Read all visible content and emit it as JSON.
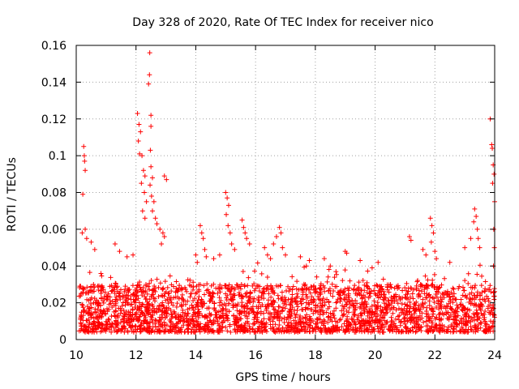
{
  "chart_data": {
    "type": "scatter",
    "title": "Day 328 of 2020, Rate Of TEC Index for receiver nico",
    "xlabel": "GPS time / hours",
    "ylabel": "ROTI / TECUs",
    "xlim": [
      10,
      24
    ],
    "ylim": [
      0,
      0.16
    ],
    "xticks": [
      "10",
      "12",
      "14",
      "16",
      "18",
      "20",
      "22",
      "24"
    ],
    "yticks": [
      "0",
      "0.02",
      "0.04",
      "0.06",
      "0.08",
      "0.1",
      "0.12",
      "0.14",
      "0.16"
    ],
    "grid": true,
    "marker": "+",
    "color": "#ff0000",
    "series": [
      {
        "name": "ROTI",
        "points": [
          [
            10.25,
            0.105
          ],
          [
            10.28,
            0.097
          ],
          [
            10.3,
            0.092
          ],
          [
            10.27,
            0.1
          ],
          [
            10.22,
            0.079
          ],
          [
            10.3,
            0.06
          ],
          [
            10.2,
            0.058
          ],
          [
            10.35,
            0.055
          ],
          [
            10.5,
            0.053
          ],
          [
            10.62,
            0.049
          ],
          [
            11.3,
            0.052
          ],
          [
            11.45,
            0.048
          ],
          [
            11.7,
            0.045
          ],
          [
            11.9,
            0.046
          ],
          [
            12.05,
            0.123
          ],
          [
            12.1,
            0.117
          ],
          [
            12.15,
            0.113
          ],
          [
            12.08,
            0.108
          ],
          [
            12.12,
            0.101
          ],
          [
            12.2,
            0.1
          ],
          [
            12.25,
            0.092
          ],
          [
            12.3,
            0.089
          ],
          [
            12.18,
            0.085
          ],
          [
            12.28,
            0.08
          ],
          [
            12.35,
            0.075
          ],
          [
            12.22,
            0.07
          ],
          [
            12.3,
            0.066
          ],
          [
            12.46,
            0.156
          ],
          [
            12.45,
            0.144
          ],
          [
            12.42,
            0.139
          ],
          [
            12.5,
            0.122
          ],
          [
            12.5,
            0.116
          ],
          [
            12.48,
            0.103
          ],
          [
            12.5,
            0.094
          ],
          [
            12.55,
            0.088
          ],
          [
            12.47,
            0.084
          ],
          [
            12.52,
            0.078
          ],
          [
            12.6,
            0.075
          ],
          [
            12.55,
            0.07
          ],
          [
            12.65,
            0.066
          ],
          [
            12.7,
            0.063
          ],
          [
            12.8,
            0.06
          ],
          [
            12.9,
            0.058
          ],
          [
            12.95,
            0.056
          ],
          [
            12.85,
            0.052
          ],
          [
            12.95,
            0.089
          ],
          [
            13.02,
            0.087
          ],
          [
            14.0,
            0.046
          ],
          [
            14.05,
            0.042
          ],
          [
            14.15,
            0.062
          ],
          [
            14.2,
            0.058
          ],
          [
            14.25,
            0.055
          ],
          [
            14.3,
            0.049
          ],
          [
            14.35,
            0.045
          ],
          [
            14.6,
            0.044
          ],
          [
            14.8,
            0.046
          ],
          [
            15.0,
            0.08
          ],
          [
            15.05,
            0.077
          ],
          [
            15.1,
            0.073
          ],
          [
            15.02,
            0.068
          ],
          [
            15.08,
            0.062
          ],
          [
            15.15,
            0.058
          ],
          [
            15.2,
            0.052
          ],
          [
            15.3,
            0.049
          ],
          [
            15.55,
            0.065
          ],
          [
            15.6,
            0.061
          ],
          [
            15.65,
            0.058
          ],
          [
            15.7,
            0.055
          ],
          [
            15.8,
            0.052
          ],
          [
            16.3,
            0.05
          ],
          [
            16.4,
            0.046
          ],
          [
            16.5,
            0.044
          ],
          [
            16.6,
            0.052
          ],
          [
            16.7,
            0.056
          ],
          [
            16.8,
            0.061
          ],
          [
            16.85,
            0.058
          ],
          [
            16.9,
            0.05
          ],
          [
            17.0,
            0.046
          ],
          [
            17.5,
            0.045
          ],
          [
            17.7,
            0.04
          ],
          [
            17.8,
            0.043
          ],
          [
            18.3,
            0.044
          ],
          [
            18.5,
            0.04
          ],
          [
            19.0,
            0.048
          ],
          [
            19.05,
            0.047
          ],
          [
            19.5,
            0.043
          ],
          [
            19.9,
            0.039
          ],
          [
            20.1,
            0.042
          ],
          [
            21.15,
            0.056
          ],
          [
            21.2,
            0.054
          ],
          [
            21.6,
            0.049
          ],
          [
            21.7,
            0.046
          ],
          [
            21.85,
            0.066
          ],
          [
            21.9,
            0.062
          ],
          [
            21.95,
            0.058
          ],
          [
            21.88,
            0.053
          ],
          [
            22.0,
            0.048
          ],
          [
            22.05,
            0.044
          ],
          [
            22.5,
            0.042
          ],
          [
            23.0,
            0.05
          ],
          [
            23.2,
            0.055
          ],
          [
            23.3,
            0.064
          ],
          [
            23.33,
            0.071
          ],
          [
            23.38,
            0.067
          ],
          [
            23.42,
            0.06
          ],
          [
            23.45,
            0.055
          ],
          [
            23.5,
            0.05
          ],
          [
            23.85,
            0.12
          ],
          [
            23.9,
            0.106
          ],
          [
            23.92,
            0.104
          ],
          [
            23.95,
            0.095
          ],
          [
            23.98,
            0.09
          ],
          [
            23.93,
            0.085
          ],
          [
            24.0,
            0.075
          ],
          [
            23.97,
            0.06
          ],
          [
            23.99,
            0.05
          ],
          [
            23.96,
            0.04
          ]
        ],
        "baseline": {
          "x_range": [
            10.1,
            24.0
          ],
          "typical_min": 0.004,
          "typical_max": 0.03,
          "note": "dense band of ROTI values between about 0.005 and 0.03 TECUs across the whole time range"
        }
      }
    ]
  }
}
